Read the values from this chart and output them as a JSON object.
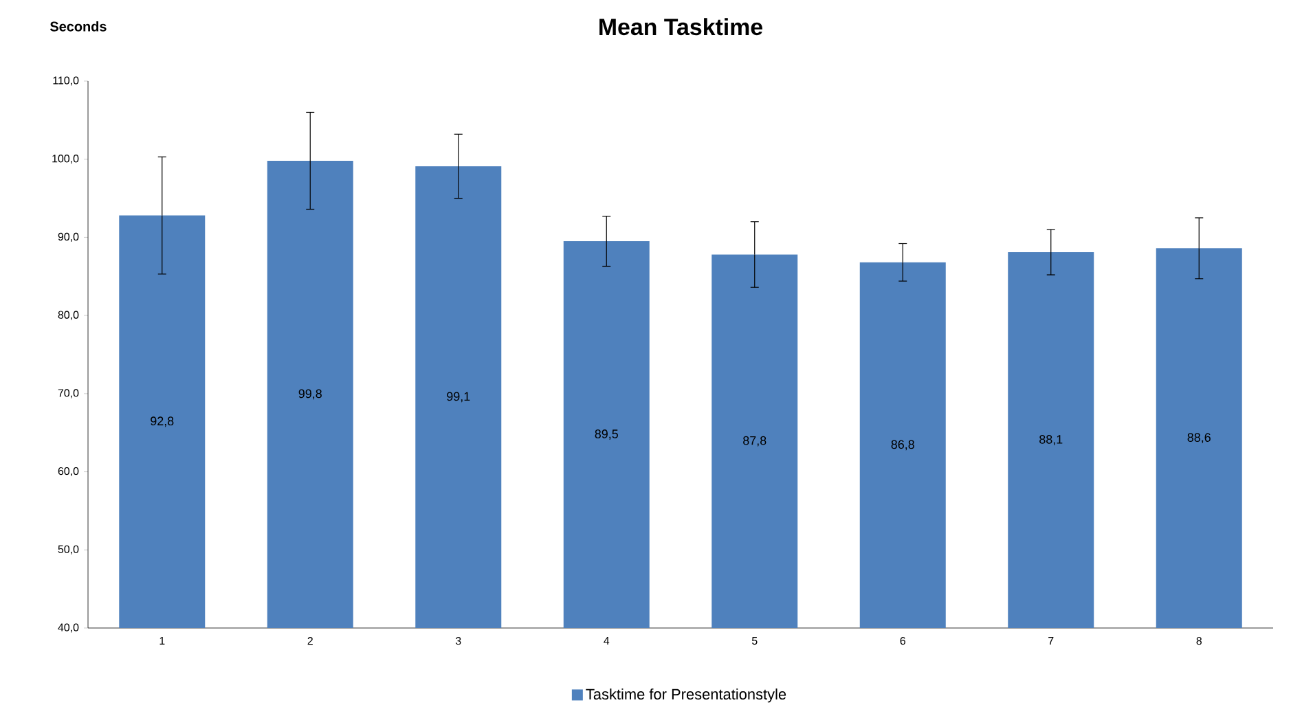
{
  "chart_data": {
    "type": "bar",
    "title": "Mean Tasktime",
    "ylabel": "Seconds",
    "categories": [
      "1",
      "2",
      "3",
      "4",
      "5",
      "6",
      "7",
      "8"
    ],
    "series": [
      {
        "name": "Tasktime for Presentationstyle",
        "color": "#4f81bd",
        "values": [
          92.8,
          99.8,
          99.1,
          89.5,
          87.8,
          86.8,
          88.1,
          88.6
        ],
        "errors": [
          7.5,
          6.2,
          4.1,
          3.2,
          4.2,
          2.4,
          2.9,
          3.9
        ],
        "value_labels": [
          "92,8",
          "99,8",
          "99,1",
          "89,5",
          "87,8",
          "86,8",
          "88,1",
          "88,6"
        ]
      }
    ],
    "ylim": [
      40,
      110
    ],
    "yticks": [
      {
        "value": 40,
        "label": "40,0"
      },
      {
        "value": 50,
        "label": "50,0"
      },
      {
        "value": 60,
        "label": "60,0"
      },
      {
        "value": 70,
        "label": "70,0"
      },
      {
        "value": 80,
        "label": "80,0"
      },
      {
        "value": 90,
        "label": "90,0"
      },
      {
        "value": 100,
        "label": "100,0"
      },
      {
        "value": 110,
        "label": "110,0"
      }
    ],
    "grid": false,
    "legend": "bottom"
  }
}
